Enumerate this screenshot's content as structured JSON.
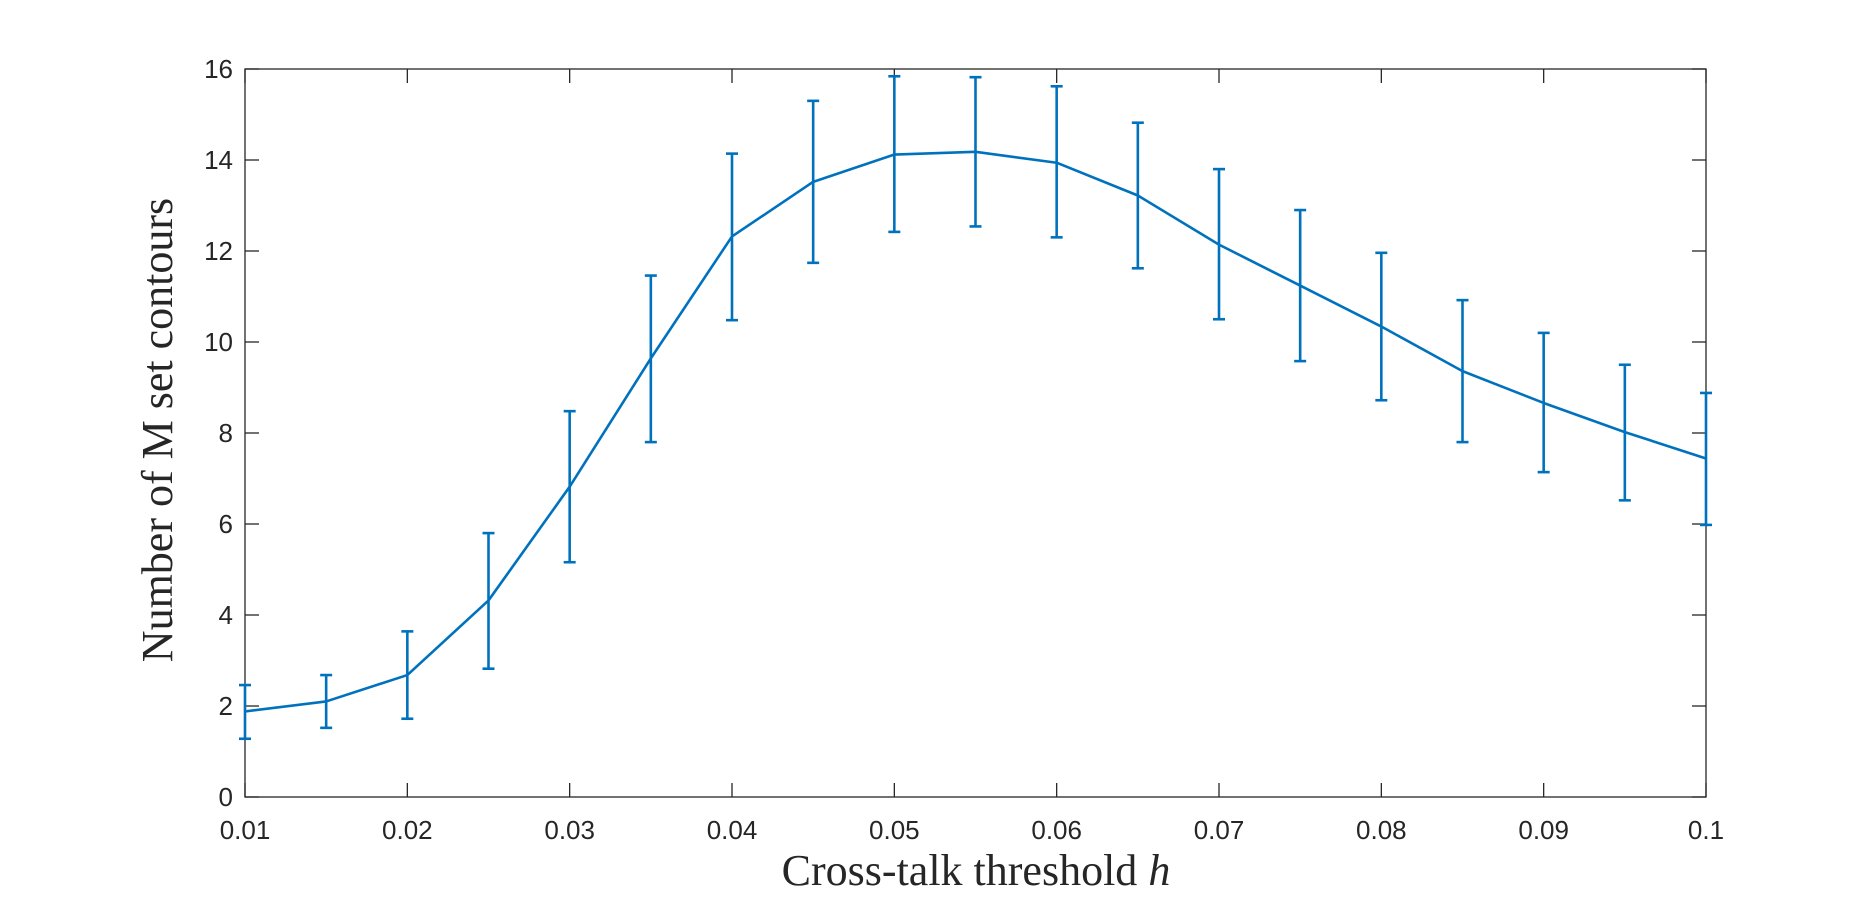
{
  "chart_data": {
    "type": "line",
    "title": "",
    "xlabel": "Cross-talk threshold",
    "xlabel_var": "h",
    "ylabel": "Number of M set contours",
    "xlim": [
      0.01,
      0.1
    ],
    "ylim": [
      0,
      16
    ],
    "x_ticks": [
      0.01,
      0.02,
      0.03,
      0.04,
      0.05,
      0.06,
      0.07,
      0.08,
      0.09,
      0.1
    ],
    "x_tick_labels": [
      "0.01",
      "0.02",
      "0.03",
      "0.04",
      "0.05",
      "0.06",
      "0.07",
      "0.08",
      "0.09",
      "0.1"
    ],
    "y_ticks": [
      0,
      2,
      4,
      6,
      8,
      10,
      12,
      14,
      16
    ],
    "y_tick_labels": [
      "0",
      "2",
      "4",
      "6",
      "8",
      "10",
      "12",
      "14",
      "16"
    ],
    "grid": false,
    "box": true,
    "series": [
      {
        "color": "#0072bd",
        "error_bars": true,
        "x": [
          0.01,
          0.015,
          0.02,
          0.025,
          0.03,
          0.035,
          0.04,
          0.045,
          0.05,
          0.055,
          0.06,
          0.065,
          0.07,
          0.075,
          0.08,
          0.085,
          0.09,
          0.095,
          0.1
        ],
        "y": [
          1.88,
          2.1,
          2.68,
          4.32,
          6.82,
          9.64,
          12.32,
          13.52,
          14.12,
          14.18,
          13.94,
          13.22,
          12.14,
          11.24,
          10.34,
          9.36,
          8.66,
          8.02,
          7.44
        ],
        "y_lower": [
          1.28,
          1.52,
          1.72,
          2.82,
          5.16,
          7.8,
          10.48,
          11.74,
          12.42,
          12.54,
          12.3,
          11.62,
          10.5,
          9.58,
          8.72,
          7.8,
          7.14,
          6.52,
          5.98
        ],
        "y_upper": [
          2.46,
          2.68,
          3.64,
          5.8,
          8.48,
          11.46,
          14.14,
          15.3,
          15.84,
          15.82,
          15.62,
          14.82,
          13.8,
          12.9,
          11.96,
          10.92,
          10.2,
          9.5,
          8.88
        ]
      }
    ]
  }
}
